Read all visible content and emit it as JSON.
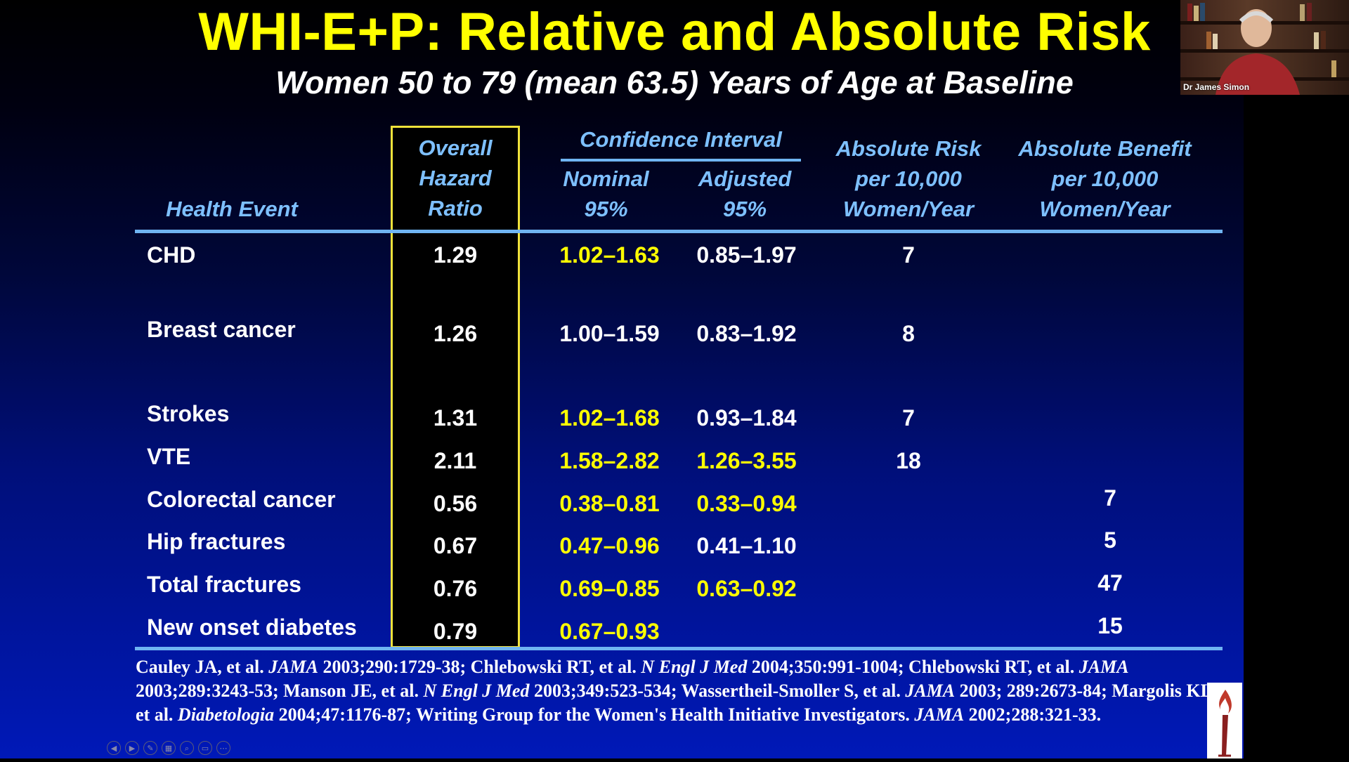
{
  "slide": {
    "title": "WHI-E+P: Relative and Absolute Risk",
    "subtitle": "Women 50 to 79 (mean 63.5) Years of Age at Baseline"
  },
  "headers": {
    "health_event": "Health Event",
    "hazard_ratio": [
      "Overall",
      "Hazard",
      "Ratio"
    ],
    "confidence_interval": "Confidence Interval",
    "nominal": [
      "Nominal",
      "95%"
    ],
    "adjusted": [
      "Adjusted",
      "95%"
    ],
    "absolute_risk": [
      "Absolute Risk",
      "per 10,000",
      "Women/Year"
    ],
    "absolute_benefit": [
      "Absolute Benefit",
      "per 10,000",
      "Women/Year"
    ]
  },
  "rows": [
    {
      "event": "CHD",
      "hr": "1.29",
      "nominal": "1.02–1.63",
      "adjusted": "0.85–1.97",
      "risk": "7",
      "benefit": ""
    },
    {
      "event": "Breast cancer",
      "hr": "1.26",
      "nominal": "1.00–1.59",
      "adjusted": "0.83–1.92",
      "risk": "8",
      "benefit": ""
    },
    {
      "event": "Strokes",
      "hr": "1.31",
      "nominal": "1.02–1.68",
      "adjusted": "0.93–1.84",
      "risk": "7",
      "benefit": ""
    },
    {
      "event": "VTE",
      "hr": "2.11",
      "nominal": "1.58–2.82",
      "adjusted": "1.26–3.55",
      "risk": "18",
      "benefit": ""
    },
    {
      "event": "Colorectal cancer",
      "hr": "0.56",
      "nominal": "0.38–0.81",
      "adjusted": "0.33–0.94",
      "risk": "",
      "benefit": "7"
    },
    {
      "event": "Hip fractures",
      "hr": "0.67",
      "nominal": "0.47–0.96",
      "adjusted": "0.41–1.10",
      "risk": "",
      "benefit": "5"
    },
    {
      "event": "Total fractures",
      "hr": "0.76",
      "nominal": "0.69–0.85",
      "adjusted": "0.63–0.92",
      "risk": "",
      "benefit": "47"
    },
    {
      "event": "New onset diabetes",
      "hr": "0.79",
      "nominal": "0.67–0.93",
      "adjusted": "",
      "risk": "",
      "benefit": "15"
    }
  ],
  "references": [
    {
      "t": "Cauley JA, et al. "
    },
    {
      "t": "JAMA",
      "i": true
    },
    {
      "t": " 2003;290:1729-38; Chlebowski RT, et al. "
    },
    {
      "t": "N Engl J Med",
      "i": true
    },
    {
      "t": " 2004;350:991-1004; Chlebowski RT, et al. "
    },
    {
      "t": "JAMA",
      "i": true
    },
    {
      "t": " 2003;289:3243-53; Manson JE, et al. "
    },
    {
      "t": "N Engl J Med",
      "i": true
    },
    {
      "t": " 2003;349:523-534; Wassertheil-Smoller S, et al. "
    },
    {
      "t": "JAMA",
      "i": true
    },
    {
      "t": " 2003; 289:2673-84; Margolis KL, et al. "
    },
    {
      "t": "Diabetologia",
      "i": true
    },
    {
      "t": " 2004;47:1176-87; Writing Group for the Women's Health Initiative Investigators. "
    },
    {
      "t": "JAMA",
      "i": true
    },
    {
      "t": " 2002;288:321-33."
    }
  ],
  "video": {
    "participant_name": "Dr James Simon"
  },
  "colors": {
    "title": "#ffff00",
    "header": "#7ec0ff",
    "highlight": "#ffff00",
    "text": "#ffffff",
    "box": "#f0e23a"
  },
  "controls": [
    "back-icon",
    "forward-icon",
    "pen-icon",
    "slides-icon",
    "zoom-icon",
    "subtitles-icon",
    "more-icon"
  ]
}
